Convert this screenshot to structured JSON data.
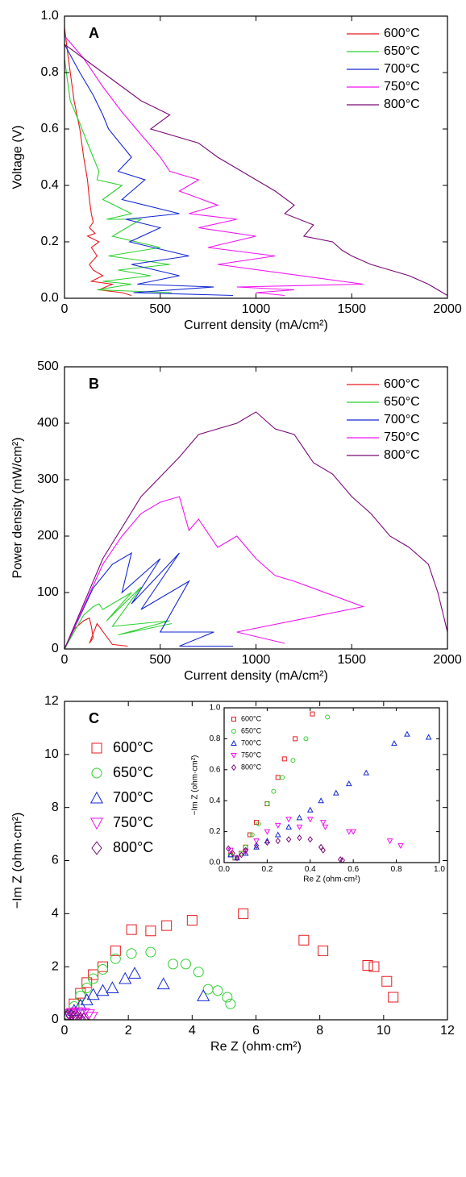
{
  "chart_data": [
    {
      "type": "line",
      "panel": "A",
      "xlabel": "Current density (mA/cm²)",
      "ylabel": "Voltage (V)",
      "xlim": [
        0,
        2000
      ],
      "ylim": [
        0,
        1
      ],
      "xticks": [
        0,
        500,
        1000,
        1500,
        2000
      ],
      "yticks": [
        {
          "value": 0,
          "label": "0.0"
        },
        0.2,
        0.4,
        0.6,
        0.8,
        {
          "value": 1,
          "label": "1.0"
        }
      ],
      "legend": "upper right",
      "series": [
        {
          "name": "600°C",
          "color": "#e8191f",
          "x": [
            0,
            20,
            50,
            80,
            100,
            120,
            130,
            140,
            150,
            130,
            160,
            120,
            180,
            140,
            170,
            130,
            150,
            200,
            140,
            250,
            180,
            300,
            350
          ],
          "values": [
            0.96,
            0.85,
            0.7,
            0.6,
            0.5,
            0.42,
            0.35,
            0.3,
            0.27,
            0.25,
            0.23,
            0.22,
            0.2,
            0.18,
            0.15,
            0.12,
            0.1,
            0.08,
            0.06,
            0.05,
            0.03,
            0.02,
            0.01
          ]
        },
        {
          "name": "650°C",
          "color": "#2ed12e",
          "x": [
            0,
            30,
            80,
            120,
            150,
            180,
            170,
            300,
            200,
            350,
            220,
            400,
            250,
            500,
            230,
            550,
            280,
            450,
            200,
            350,
            170,
            560
          ],
          "values": [
            0.85,
            0.7,
            0.62,
            0.55,
            0.5,
            0.45,
            0.42,
            0.4,
            0.35,
            0.3,
            0.28,
            0.28,
            0.22,
            0.18,
            0.15,
            0.12,
            0.1,
            0.08,
            0.06,
            0.05,
            0.03,
            0.02
          ]
        },
        {
          "name": "700°C",
          "color": "#1428d2",
          "x": [
            0,
            80,
            150,
            200,
            230,
            350,
            280,
            420,
            300,
            600,
            320,
            500,
            340,
            650,
            350,
            600,
            380,
            780,
            360,
            880
          ],
          "values": [
            0.9,
            0.8,
            0.72,
            0.65,
            0.6,
            0.5,
            0.45,
            0.42,
            0.35,
            0.3,
            0.28,
            0.25,
            0.2,
            0.15,
            0.12,
            0.08,
            0.05,
            0.04,
            0.02,
            0.01
          ]
        },
        {
          "name": "750°C",
          "color": "#f014f0",
          "x": [
            0,
            100,
            200,
            300,
            400,
            500,
            550,
            700,
            600,
            800,
            650,
            900,
            700,
            1000,
            750,
            1100,
            800,
            1560,
            900,
            1200,
            1000,
            1150
          ],
          "values": [
            0.93,
            0.85,
            0.75,
            0.66,
            0.58,
            0.5,
            0.45,
            0.42,
            0.38,
            0.33,
            0.3,
            0.28,
            0.25,
            0.22,
            0.18,
            0.15,
            0.12,
            0.05,
            0.04,
            0.03,
            0.02,
            0.01
          ]
        },
        {
          "name": "800°C",
          "color": "#7a0a78",
          "x": [
            0,
            100,
            200,
            300,
            400,
            550,
            450,
            700,
            800,
            900,
            1000,
            1100,
            1200,
            1150,
            1300,
            1250,
            1400,
            1450,
            1500,
            1600,
            1700,
            1800,
            1900,
            1950,
            2000
          ],
          "values": [
            0.9,
            0.85,
            0.8,
            0.75,
            0.7,
            0.65,
            0.6,
            0.55,
            0.5,
            0.46,
            0.42,
            0.38,
            0.33,
            0.3,
            0.26,
            0.22,
            0.2,
            0.17,
            0.15,
            0.12,
            0.1,
            0.08,
            0.05,
            0.03,
            0.01
          ]
        }
      ]
    },
    {
      "type": "line",
      "panel": "B",
      "xlabel": "Current density (mA/cm²)",
      "ylabel": "Power density (mW/cm²)",
      "xlim": [
        0,
        2000
      ],
      "ylim": [
        0,
        500
      ],
      "xticks": [
        0,
        500,
        1000,
        1500,
        2000
      ],
      "yticks": [
        0,
        100,
        200,
        300,
        400,
        500
      ],
      "legend": "upper right",
      "series": [
        {
          "name": "600°C",
          "color": "#e8191f",
          "x": [
            0,
            50,
            100,
            130,
            140,
            150,
            130,
            170,
            250,
            330
          ],
          "values": [
            0,
            35,
            50,
            55,
            40,
            20,
            10,
            45,
            8,
            5
          ]
        },
        {
          "name": "650°C",
          "color": "#2ed12e",
          "x": [
            0,
            100,
            150,
            180,
            200,
            350,
            220,
            400,
            250,
            550,
            280,
            560
          ],
          "values": [
            0,
            60,
            75,
            80,
            70,
            100,
            50,
            110,
            40,
            50,
            25,
            45
          ]
        },
        {
          "name": "700°C",
          "color": "#1428d2",
          "x": [
            0,
            150,
            250,
            350,
            300,
            500,
            350,
            600,
            400,
            650,
            500,
            780,
            600,
            880
          ],
          "values": [
            0,
            108,
            150,
            170,
            100,
            160,
            80,
            170,
            70,
            120,
            30,
            30,
            5,
            5
          ]
        },
        {
          "name": "750°C",
          "color": "#f014f0",
          "x": [
            0,
            200,
            300,
            400,
            500,
            600,
            650,
            700,
            800,
            900,
            1000,
            1100,
            1200,
            1560,
            900,
            1150
          ],
          "values": [
            0,
            150,
            200,
            240,
            260,
            270,
            210,
            230,
            180,
            200,
            160,
            130,
            120,
            75,
            30,
            10
          ]
        },
        {
          "name": "800°C",
          "color": "#7a0a78",
          "x": [
            0,
            200,
            400,
            600,
            700,
            900,
            1000,
            1100,
            1200,
            1300,
            1400,
            1500,
            1600,
            1700,
            1800,
            1900,
            1950,
            2000
          ],
          "values": [
            0,
            160,
            270,
            340,
            380,
            400,
            420,
            390,
            380,
            330,
            310,
            270,
            240,
            200,
            180,
            150,
            100,
            30
          ]
        }
      ]
    },
    {
      "type": "scatter",
      "panel": "C",
      "xlabel": "Re Z (ohm·cm²)",
      "ylabel": "−Im Z (ohm·cm²)",
      "xlim": [
        0,
        12
      ],
      "ylim": [
        0,
        12
      ],
      "xticks": [
        0,
        2,
        4,
        6,
        8,
        10,
        12
      ],
      "yticks": [
        0,
        2,
        4,
        6,
        8,
        10,
        12
      ],
      "legend": "upper left",
      "series": [
        {
          "name": "600°C",
          "color": "#e8191f",
          "marker": "square",
          "x": [
            0.1,
            0.3,
            0.5,
            0.7,
            0.9,
            1.2,
            1.6,
            2.1,
            2.7,
            3.2,
            4.0,
            5.6,
            7.5,
            8.1,
            9.5,
            9.7,
            10.1,
            10.3
          ],
          "values": [
            0.2,
            0.6,
            1.0,
            1.4,
            1.7,
            2.0,
            2.6,
            3.4,
            3.35,
            3.55,
            3.75,
            4.0,
            3.0,
            2.6,
            2.05,
            2.0,
            1.45,
            0.85
          ]
        },
        {
          "name": "650°C",
          "color": "#2ed12e",
          "marker": "circle",
          "x": [
            0.1,
            0.3,
            0.5,
            0.7,
            0.9,
            1.2,
            1.6,
            2.1,
            2.7,
            3.4,
            3.8,
            4.2,
            4.5,
            4.8,
            5.1,
            5.2
          ],
          "values": [
            0.2,
            0.5,
            0.9,
            1.2,
            1.55,
            1.9,
            2.3,
            2.5,
            2.55,
            2.1,
            2.1,
            1.8,
            1.15,
            1.1,
            0.85,
            0.6
          ]
        },
        {
          "name": "700°C",
          "color": "#1428d2",
          "marker": "triangle",
          "x": [
            0.1,
            0.3,
            0.5,
            0.7,
            0.9,
            1.2,
            1.5,
            1.9,
            2.2,
            3.1,
            4.35
          ],
          "values": [
            0.15,
            0.35,
            0.55,
            0.75,
            0.95,
            1.1,
            1.2,
            1.55,
            1.75,
            1.35,
            0.9
          ]
        },
        {
          "name": "750°C",
          "color": "#f014f0",
          "marker": "triangle-down",
          "x": [
            0.05,
            0.15,
            0.25,
            0.4,
            0.5,
            0.6,
            0.75,
            0.85
          ],
          "values": [
            0.1,
            0.2,
            0.25,
            0.27,
            0.25,
            0.25,
            0.2,
            0.1
          ]
        },
        {
          "name": "800°C",
          "color": "#7a0a78",
          "marker": "diamond",
          "x": [
            0.05,
            0.1,
            0.2,
            0.3,
            0.4,
            0.5,
            0.6
          ],
          "values": [
            0.1,
            0.15,
            0.15,
            0.1,
            0.08,
            0.03,
            0.02
          ]
        }
      ]
    },
    {
      "type": "scatter",
      "xlabel": "Re Z (ohm·cm²)",
      "ylabel": "−Im Z (ohm·cm²)",
      "xlim": [
        0,
        1
      ],
      "ylim": [
        0,
        1
      ],
      "xticks": [
        {
          "value": 0,
          "label": "0.0"
        },
        0.2,
        0.4,
        0.6,
        0.8,
        {
          "value": 1,
          "label": "1.0"
        }
      ],
      "yticks": [
        {
          "value": 0,
          "label": "0.0"
        },
        0.2,
        0.4,
        0.6,
        0.8,
        {
          "value": 1,
          "label": "1.0"
        }
      ],
      "legend": "upper left",
      "series": [
        {
          "name": "600°C",
          "color": "#e8191f",
          "marker": "square",
          "x": [
            0.03,
            0.05,
            0.08,
            0.1,
            0.12,
            0.15,
            0.2,
            0.25,
            0.28,
            0.33,
            0.41
          ],
          "values": [
            0.05,
            0.03,
            0.06,
            0.1,
            0.18,
            0.26,
            0.38,
            0.55,
            0.67,
            0.8,
            0.96
          ]
        },
        {
          "name": "650°C",
          "color": "#2ed12e",
          "marker": "circle",
          "x": [
            0.03,
            0.05,
            0.08,
            0.1,
            0.13,
            0.16,
            0.2,
            0.23,
            0.27,
            0.32,
            0.38,
            0.48
          ],
          "values": [
            0.05,
            0.03,
            0.06,
            0.1,
            0.18,
            0.25,
            0.38,
            0.46,
            0.55,
            0.66,
            0.8,
            0.94
          ]
        },
        {
          "name": "700°C",
          "color": "#1428d2",
          "marker": "triangle",
          "x": [
            0.03,
            0.06,
            0.1,
            0.15,
            0.2,
            0.25,
            0.3,
            0.35,
            0.4,
            0.45,
            0.52,
            0.58,
            0.66,
            0.79,
            0.85,
            0.95
          ],
          "values": [
            0.05,
            0.03,
            0.06,
            0.1,
            0.14,
            0.18,
            0.23,
            0.29,
            0.34,
            0.4,
            0.45,
            0.51,
            0.58,
            0.77,
            0.83,
            0.81
          ]
        },
        {
          "name": "750°C",
          "color": "#f014f0",
          "marker": "triangle-down",
          "x": [
            0.03,
            0.06,
            0.1,
            0.15,
            0.2,
            0.25,
            0.3,
            0.35,
            0.4,
            0.46,
            0.47,
            0.58,
            0.6,
            0.77,
            0.82
          ],
          "values": [
            0.08,
            0.03,
            0.07,
            0.14,
            0.2,
            0.24,
            0.28,
            0.23,
            0.28,
            0.26,
            0.23,
            0.2,
            0.2,
            0.14,
            0.11
          ]
        },
        {
          "name": "800°C",
          "color": "#7a0a78",
          "marker": "diamond",
          "x": [
            0.02,
            0.04,
            0.06,
            0.08,
            0.1,
            0.15,
            0.2,
            0.25,
            0.3,
            0.35,
            0.4,
            0.45,
            0.46,
            0.54,
            0.55
          ],
          "values": [
            0.09,
            0.06,
            0.03,
            0.05,
            0.08,
            0.11,
            0.13,
            0.14,
            0.15,
            0.16,
            0.15,
            0.1,
            0.08,
            0.02,
            0.015
          ]
        }
      ]
    }
  ]
}
